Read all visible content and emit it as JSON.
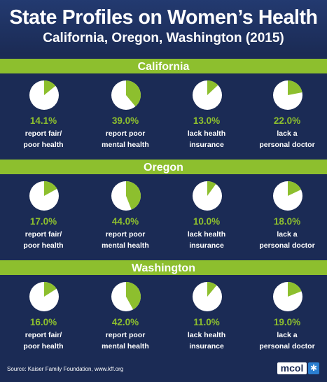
{
  "title": "State Profiles on Women’s Health",
  "subtitle": "California, Oregon, Washington (2015)",
  "colors": {
    "background": "#1b2b55",
    "accent": "#8dbf2e",
    "pie_base": "#ffffff"
  },
  "chart_data": [
    {
      "type": "pie",
      "title": "California",
      "categories": [
        "report fair/ poor health",
        "report poor mental health",
        "lack health insurance",
        "lack a personal doctor"
      ],
      "values": [
        14.1,
        39.0,
        13.0,
        22.0
      ],
      "labels": [
        "14.1%",
        "39.0%",
        "13.0%",
        "22.0%"
      ],
      "lines": [
        [
          "report fair/",
          "poor health"
        ],
        [
          "report poor",
          "mental health"
        ],
        [
          "lack health",
          "insurance"
        ],
        [
          "lack a",
          "personal doctor"
        ]
      ]
    },
    {
      "type": "pie",
      "title": "Oregon",
      "categories": [
        "report fair/ poor health",
        "report poor mental health",
        "lack health insurance",
        "lack a personal doctor"
      ],
      "values": [
        17.0,
        44.0,
        10.0,
        18.0
      ],
      "labels": [
        "17.0%",
        "44.0%",
        "10.0%",
        "18.0%"
      ],
      "lines": [
        [
          "report fair/",
          "poor health"
        ],
        [
          "report poor",
          "mental health"
        ],
        [
          "lack health",
          "insurance"
        ],
        [
          "lack a",
          "personal doctor"
        ]
      ]
    },
    {
      "type": "pie",
      "title": "Washington",
      "categories": [
        "report fair/ poor health",
        "report poor mental health",
        "lack health insurance",
        "lack a personal doctor"
      ],
      "values": [
        16.0,
        42.0,
        11.0,
        19.0
      ],
      "labels": [
        "16.0%",
        "42.0%",
        "11.0%",
        "19.0%"
      ],
      "lines": [
        [
          "report fair/",
          "poor health"
        ],
        [
          "report poor",
          "mental health"
        ],
        [
          "lack health",
          "insurance"
        ],
        [
          "lack a",
          "personal doctor"
        ]
      ]
    }
  ],
  "footer": {
    "source": "Source:  Kaiser Family Foundation, www.kff.org",
    "logo": "mcol",
    "logo_icon": "asterisk-icon"
  }
}
